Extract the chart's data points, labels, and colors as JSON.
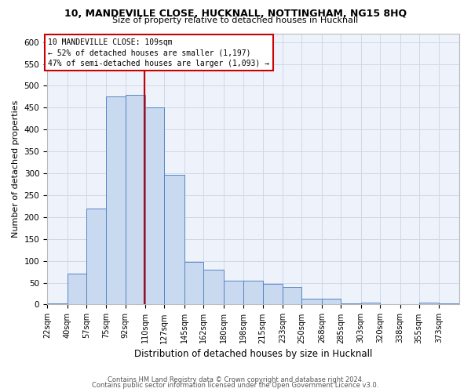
{
  "title_line1": "10, MANDEVILLE CLOSE, HUCKNALL, NOTTINGHAM, NG15 8HQ",
  "title_line2": "Size of property relative to detached houses in Hucknall",
  "xlabel": "Distribution of detached houses by size in Hucknall",
  "ylabel": "Number of detached properties",
  "bin_labels": [
    "22sqm",
    "40sqm",
    "57sqm",
    "75sqm",
    "92sqm",
    "110sqm",
    "127sqm",
    "145sqm",
    "162sqm",
    "180sqm",
    "198sqm",
    "215sqm",
    "233sqm",
    "250sqm",
    "268sqm",
    "285sqm",
    "303sqm",
    "320sqm",
    "338sqm",
    "355sqm",
    "373sqm"
  ],
  "bin_edges": [
    22,
    40,
    57,
    75,
    92,
    110,
    127,
    145,
    162,
    180,
    198,
    215,
    233,
    250,
    268,
    285,
    303,
    320,
    338,
    355,
    373
  ],
  "bar_heights": [
    2,
    70,
    220,
    475,
    480,
    450,
    297,
    97,
    80,
    55,
    55,
    47,
    40,
    13,
    13,
    2,
    5,
    0,
    0,
    5,
    2
  ],
  "bar_color": "#c9d9f0",
  "bar_edge_color": "#5585c5",
  "property_size": 109,
  "vline_color": "#cc0000",
  "annotation_text_line1": "10 MANDEVILLE CLOSE: 109sqm",
  "annotation_text_line2": "← 52% of detached houses are smaller (1,197)",
  "annotation_text_line3": "47% of semi-detached houses are larger (1,093) →",
  "annotation_box_color": "#ffffff",
  "annotation_box_edge_color": "#cc0000",
  "grid_color": "#d0d8e8",
  "background_color": "#eef2fa",
  "footer_line1": "Contains HM Land Registry data © Crown copyright and database right 2024.",
  "footer_line2": "Contains public sector information licensed under the Open Government Licence v3.0.",
  "ylim": [
    0,
    620
  ],
  "yticks": [
    0,
    50,
    100,
    150,
    200,
    250,
    300,
    350,
    400,
    450,
    500,
    550,
    600
  ],
  "title1_fontsize": 9.0,
  "title2_fontsize": 8.0,
  "ylabel_fontsize": 8.0,
  "xlabel_fontsize": 8.5,
  "xtick_fontsize": 7.0,
  "ytick_fontsize": 7.5,
  "ann_fontsize": 7.0,
  "footer_fontsize": 6.0
}
